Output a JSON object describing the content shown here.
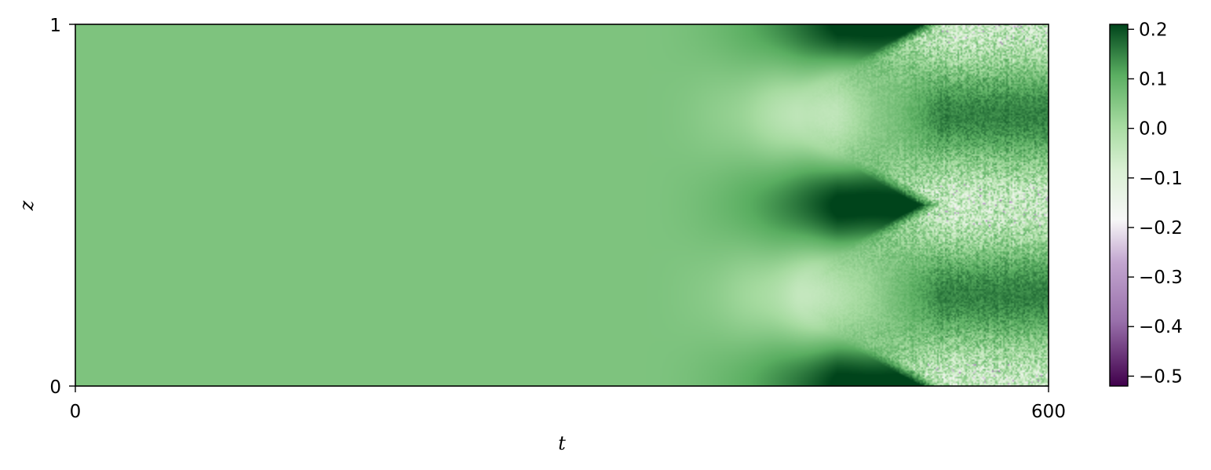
{
  "chart_data": {
    "type": "heatmap",
    "title": "",
    "xlabel": "t",
    "ylabel": "z",
    "xlim": [
      0,
      600
    ],
    "ylim": [
      0,
      1
    ],
    "x_ticks": [
      {
        "value": 0,
        "label": "0"
      },
      {
        "value": 600,
        "label": "600"
      }
    ],
    "y_ticks": [
      {
        "value": 0,
        "label": "0"
      },
      {
        "value": 1,
        "label": "1"
      }
    ],
    "colormap": "PRGn",
    "colorbar": {
      "vmin": -0.52,
      "vmax": 0.21,
      "ticks": [
        {
          "value": 0.2,
          "label": "0.2"
        },
        {
          "value": 0.1,
          "label": "0.1"
        },
        {
          "value": 0.0,
          "label": "0.0"
        },
        {
          "value": -0.1,
          "label": "−0.1"
        },
        {
          "value": -0.2,
          "label": "−0.2"
        },
        {
          "value": -0.3,
          "label": "−0.3"
        },
        {
          "value": -0.4,
          "label": "−0.4"
        },
        {
          "value": -0.5,
          "label": "−0.5"
        }
      ]
    },
    "field_description": {
      "uniform_value_until_t": 350,
      "uniform_value": 0.06,
      "transition_t_range": [
        350,
        545
      ],
      "band_centers_z": [
        0.0,
        0.5,
        1.0
      ],
      "band_peak_t": 470,
      "band_peak_value": 0.21,
      "turbulent_region_t": [
        470,
        600
      ],
      "turbulent_positive_z": [
        0.25,
        0.75
      ],
      "turbulent_negative_z": [
        0.0,
        0.5,
        1.0
      ]
    },
    "colors": {
      "green_dark": "#00441b",
      "green_mid": "#5aae61",
      "green_light": "#a6dba0",
      "white": "#f7f7f7",
      "purple_light": "#c2a5cf",
      "purple_mid": "#9970ab",
      "purple_dark": "#40004b"
    }
  }
}
